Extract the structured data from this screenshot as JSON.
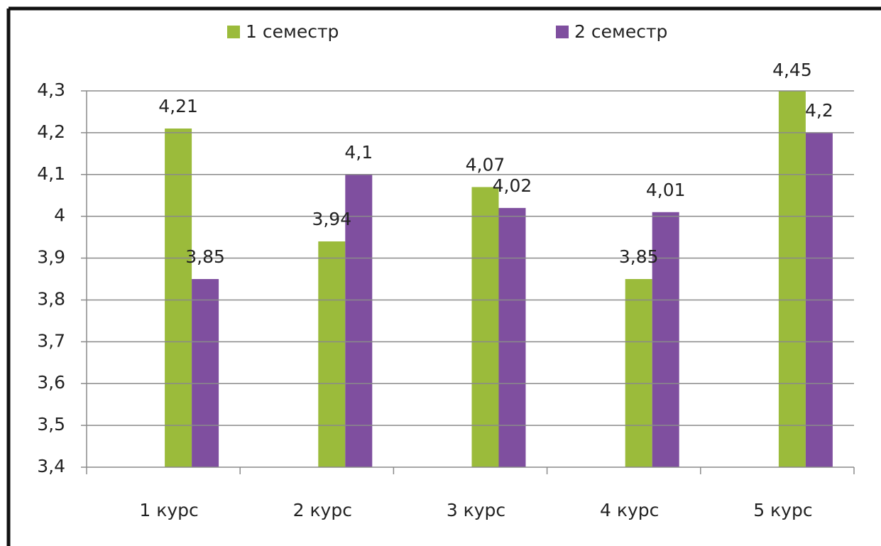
{
  "chart_data": {
    "type": "bar",
    "categories": [
      "1 курс",
      "2 курс",
      "3 курс",
      "4 курс",
      "5 курс"
    ],
    "series": [
      {
        "name": "1 семестр",
        "color": "#9bbb3b",
        "values": [
          4.21,
          3.94,
          4.07,
          3.85,
          4.45
        ],
        "value_labels": [
          "4,21",
          "3,94",
          "4,07",
          "3,85",
          "4,45"
        ]
      },
      {
        "name": "2 семестр",
        "color": "#7f4f9f",
        "values": [
          3.85,
          4.1,
          4.02,
          4.01,
          4.2
        ],
        "value_labels": [
          "3,85",
          "4,1",
          "4,02",
          "4,01",
          "4,2"
        ]
      }
    ],
    "ylim": [
      3.4,
      4.3
    ],
    "yticks": [
      {
        "value": 3.4,
        "label": "3,4"
      },
      {
        "value": 3.5,
        "label": "3,5"
      },
      {
        "value": 3.6,
        "label": "3,6"
      },
      {
        "value": 3.7,
        "label": "3,7"
      },
      {
        "value": 3.8,
        "label": "3,8"
      },
      {
        "value": 3.9,
        "label": "3,9"
      },
      4,
      {
        "value": 4.1,
        "label": "4,1"
      },
      {
        "value": 4.2,
        "label": "4,2"
      },
      {
        "value": 4.3,
        "label": "4,3"
      }
    ],
    "grid": true,
    "legend": "top"
  }
}
